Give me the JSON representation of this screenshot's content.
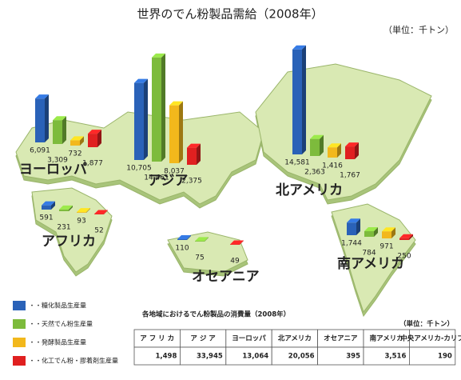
{
  "chart_data": {
    "type": "bar",
    "title": "世界のでん粉製品需給（2008年）",
    "unit": "（単位：千トン）",
    "categories": [
      "ヨーロッパ",
      "アジア",
      "北アメリカ",
      "アフリカ",
      "オセアニア",
      "南アメリカ"
    ],
    "series": [
      {
        "name": "・・糖化製品生産量",
        "color": "#2a62b8",
        "values": [
          6091,
          10705,
          14581,
          591,
          110,
          1744
        ],
        "value_labels": [
          "6,091",
          "10,705",
          "14,581",
          "591",
          "110",
          "1,744"
        ]
      },
      {
        "name": "・・天然でん粉生産量",
        "color": "#7dbb3c",
        "values": [
          3309,
          14461,
          2363,
          231,
          75,
          784
        ],
        "value_labels": [
          "3,309",
          "14,461",
          "2,363",
          "231",
          "75",
          "784"
        ]
      },
      {
        "name": "・・発酵製品生産量",
        "color": "#f2b81c",
        "values": [
          732,
          8037,
          1416,
          93,
          null,
          971
        ],
        "value_labels": [
          "732",
          "8,037",
          "1,416",
          "93",
          null,
          "971"
        ]
      },
      {
        "name": "・・化工でん粉・膠着剤生産量",
        "color": "#e02020",
        "values": [
          1877,
          2375,
          1767,
          52,
          49,
          250
        ],
        "value_labels": [
          "1,877",
          "2,375",
          "1,767",
          "52",
          "49",
          "250"
        ]
      }
    ]
  },
  "table": {
    "title": "各地域におけるでん粉製品の消費量（2008年）",
    "unit": "（単位：千トン）",
    "headers": [
      "ア フ リ カ",
      "ア ジ ア",
      "ヨーロッパ",
      "北アメリカ",
      "オセアニア",
      "南アメリカ",
      "中央アメリカ-カリブ"
    ],
    "rows": [
      [
        "1,498",
        "33,945",
        "13,064",
        "20,056",
        "395",
        "3,516",
        "190"
      ]
    ]
  }
}
